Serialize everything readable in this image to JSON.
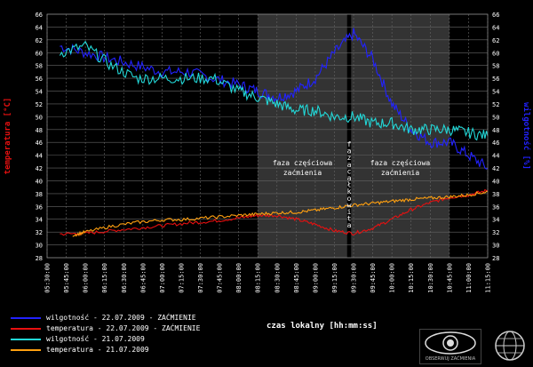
{
  "chart_data": {
    "type": "line",
    "ylabel_left": "temperatura [°C]",
    "ylabel_right": "wilgotność [%]",
    "xlabel": "czas lokalny [hh:mm:ss]",
    "ylim": [
      28,
      66
    ],
    "yticks": [
      28,
      30,
      32,
      34,
      36,
      38,
      40,
      42,
      44,
      46,
      48,
      50,
      52,
      54,
      56,
      58,
      60,
      62,
      64,
      66
    ],
    "x_ticks": [
      "05:30:00",
      "05:45:00",
      "06:00:00",
      "06:15:00",
      "06:30:00",
      "06:45:00",
      "07:00:00",
      "07:15:00",
      "07:30:00",
      "07:45:00",
      "08:00:00",
      "08:15:00",
      "08:30:00",
      "08:45:00",
      "09:00:00",
      "09:15:00",
      "09:30:00",
      "09:45:00",
      "10:00:00",
      "10:15:00",
      "10:30:00",
      "10:45:00",
      "11:00:00",
      "11:15:00"
    ],
    "xlim_minutes": [
      330,
      675
    ],
    "shaded_regions": [
      {
        "label_line1": "faza częściowa",
        "label_line2": "zaćmienia",
        "x_start": "08:15:00",
        "x_end": "09:25:00"
      },
      {
        "label_line1": "faza częściowa",
        "label_line2": "zaćmienia",
        "x_start": "09:28:00",
        "x_end": "10:45:00"
      }
    ],
    "totality": {
      "label": "faza całkowita",
      "x_start": "09:25:00",
      "x_end": "09:28:00"
    },
    "series": [
      {
        "name": "wilgotność - 22.07.2009 - ZAĆMIENIE",
        "color": "#2222ff",
        "x": [
          "05:40:00",
          "06:00:00",
          "06:20:00",
          "06:40:00",
          "07:00:00",
          "07:20:00",
          "07:40:00",
          "08:00:00",
          "08:15:00",
          "08:30:00",
          "08:45:00",
          "09:00:00",
          "09:15:00",
          "09:30:00",
          "09:45:00",
          "10:00:00",
          "10:15:00",
          "10:30:00",
          "10:45:00",
          "11:00:00",
          "11:15:00"
        ],
        "values": [
          61,
          60,
          59,
          58,
          57,
          57,
          56,
          55,
          54,
          53,
          54,
          56,
          60,
          63,
          59,
          52,
          48,
          46,
          46,
          44,
          42
        ]
      },
      {
        "name": "temperatura - 22.07.2009 - ZAĆMIENIE",
        "color": "#e81010",
        "x": [
          "05:40:00",
          "06:00:00",
          "06:20:00",
          "06:40:00",
          "07:00:00",
          "07:20:00",
          "07:40:00",
          "08:00:00",
          "08:15:00",
          "08:30:00",
          "08:45:00",
          "09:00:00",
          "09:15:00",
          "09:30:00",
          "09:45:00",
          "10:00:00",
          "10:15:00",
          "10:30:00",
          "10:45:00",
          "11:00:00",
          "11:15:00"
        ],
        "values": [
          31.7,
          31.8,
          32.2,
          32.6,
          33,
          33.4,
          33.7,
          34.2,
          34.6,
          34.6,
          34,
          33.2,
          32.2,
          31.8,
          32.6,
          34,
          35.5,
          36.6,
          37.4,
          37.8,
          38.5
        ]
      },
      {
        "name": "wilgotność - 21.07.2009",
        "color": "#22d8d8",
        "x": [
          "05:40:00",
          "06:00:00",
          "06:20:00",
          "06:40:00",
          "07:00:00",
          "07:20:00",
          "07:40:00",
          "08:00:00",
          "08:15:00",
          "08:30:00",
          "08:45:00",
          "09:00:00",
          "09:15:00",
          "09:30:00",
          "09:45:00",
          "10:00:00",
          "10:15:00",
          "10:30:00",
          "10:45:00",
          "11:00:00",
          "11:15:00"
        ],
        "values": [
          60,
          61,
          58,
          56,
          56,
          56,
          56,
          54,
          53,
          52,
          51,
          51,
          50,
          50,
          49,
          49,
          48,
          48,
          48,
          47.5,
          47
        ]
      },
      {
        "name": "temperatura - 21.07.2009",
        "color": "#ffa010",
        "x": [
          "05:50:00",
          "06:00:00",
          "06:20:00",
          "06:40:00",
          "07:00:00",
          "07:20:00",
          "07:40:00",
          "08:00:00",
          "08:15:00",
          "08:30:00",
          "08:45:00",
          "09:00:00",
          "09:15:00",
          "09:30:00",
          "09:45:00",
          "10:00:00",
          "10:15:00",
          "10:30:00",
          "10:45:00",
          "11:00:00",
          "11:15:00"
        ],
        "values": [
          31.5,
          32,
          32.9,
          33.5,
          33.9,
          34,
          34.3,
          34.6,
          34.8,
          35,
          35.1,
          35.4,
          35.8,
          36.2,
          36.5,
          36.8,
          37.1,
          37.3,
          37.5,
          37.8,
          38.3
        ]
      }
    ]
  },
  "legend": {
    "items": [
      {
        "label": "wilgotność - 22.07.2009 - ZAĆMIENIE",
        "color": "#2222ff"
      },
      {
        "label": "temperatura - 22.07.2009 - ZAĆMIENIE",
        "color": "#e81010"
      },
      {
        "label": "wilgotność - 21.07.2009",
        "color": "#22d8d8"
      },
      {
        "label": "temperatura - 21.07.2009",
        "color": "#ffa010"
      }
    ]
  },
  "logos": {
    "observatory_text": "OBSERWUJ ZAĆMIENIA"
  }
}
